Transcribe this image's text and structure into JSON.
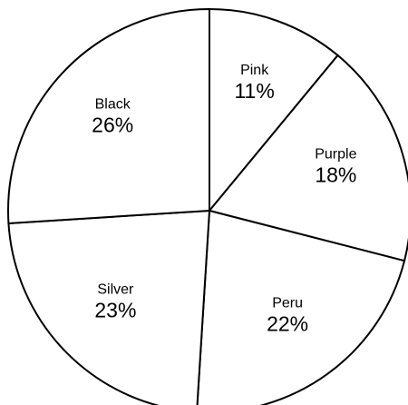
{
  "chart_data": {
    "type": "pie",
    "title": "",
    "slices": [
      {
        "label": "Pink",
        "value": 11,
        "display": "11%"
      },
      {
        "label": "Purple",
        "value": 18,
        "display": "18%"
      },
      {
        "label": "Peru",
        "value": 22,
        "display": "22%"
      },
      {
        "label": "Silver",
        "value": 23,
        "display": "23%"
      },
      {
        "label": "Black",
        "value": 26,
        "display": "26%"
      }
    ],
    "start_angle_deg": 0,
    "direction": "clockwise",
    "legend": "none",
    "slice_fill_color": "#ffffff",
    "slice_stroke_color": "#000000",
    "text_color": "#000000"
  }
}
